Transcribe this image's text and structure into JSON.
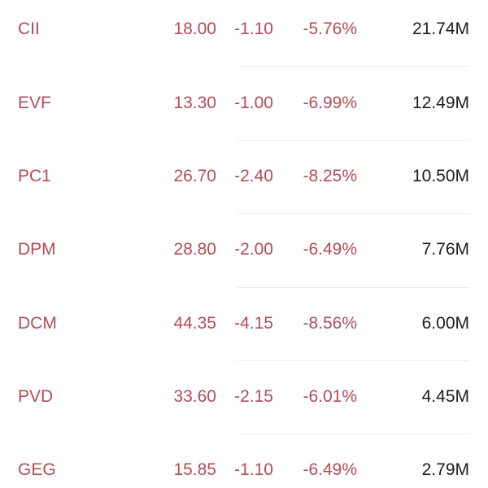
{
  "colors": {
    "down": "#b84a52",
    "volume": "#1c1c1e",
    "divider": "#ececec"
  },
  "stocks": [
    {
      "symbol": "CII",
      "price": "18.00",
      "change": "-1.10",
      "change_pct": "-5.76%",
      "volume": "21.74M"
    },
    {
      "symbol": "EVF",
      "price": "13.30",
      "change": "-1.00",
      "change_pct": "-6.99%",
      "volume": "12.49M"
    },
    {
      "symbol": "PC1",
      "price": "26.70",
      "change": "-2.40",
      "change_pct": "-8.25%",
      "volume": "10.50M"
    },
    {
      "symbol": "DPM",
      "price": "28.80",
      "change": "-2.00",
      "change_pct": "-6.49%",
      "volume": "7.76M"
    },
    {
      "symbol": "DCM",
      "price": "44.35",
      "change": "-4.15",
      "change_pct": "-8.56%",
      "volume": "6.00M"
    },
    {
      "symbol": "PVD",
      "price": "33.60",
      "change": "-2.15",
      "change_pct": "-6.01%",
      "volume": "4.45M"
    },
    {
      "symbol": "GEG",
      "price": "15.85",
      "change": "-1.10",
      "change_pct": "-6.49%",
      "volume": "2.79M"
    }
  ]
}
